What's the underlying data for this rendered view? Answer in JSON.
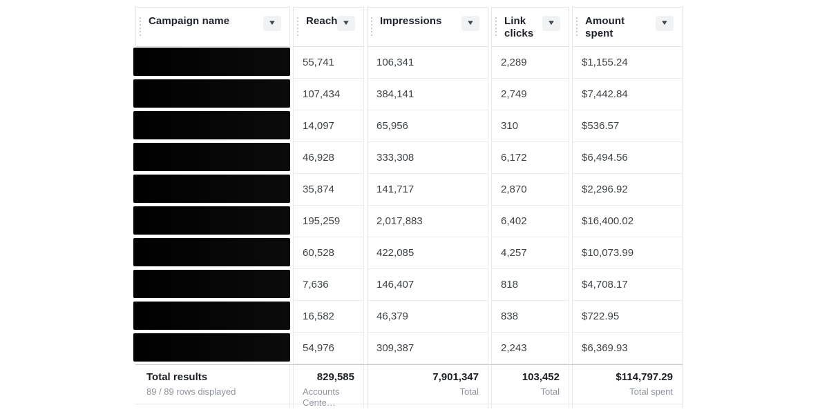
{
  "colors": {
    "border": "#e7e9ec",
    "totals_top_border": "#c6c9ce",
    "header_text": "#1d2129",
    "body_text": "#3e4347",
    "muted_text": "#8d939c",
    "sort_button_bg": "#f1f2f4",
    "redaction_bar": "#000000"
  },
  "icons": {
    "sort_caret": "▼"
  },
  "table": {
    "columns": [
      {
        "id": "campaign",
        "label": "Campaign name"
      },
      {
        "id": "reach",
        "label": "Reach"
      },
      {
        "id": "impressions",
        "label": "Impressions"
      },
      {
        "id": "link_clicks",
        "label": "Link clicks"
      },
      {
        "id": "amount_spent",
        "label": "Amount spent"
      }
    ],
    "rows": [
      {
        "reach": "55,741",
        "impressions": "106,341",
        "link_clicks": "2,289",
        "amount_spent": "$1,155.24"
      },
      {
        "reach": "107,434",
        "impressions": "384,141",
        "link_clicks": "2,749",
        "amount_spent": "$7,442.84"
      },
      {
        "reach": "14,097",
        "impressions": "65,956",
        "link_clicks": "310",
        "amount_spent": "$536.57"
      },
      {
        "reach": "46,928",
        "impressions": "333,308",
        "link_clicks": "6,172",
        "amount_spent": "$6,494.56"
      },
      {
        "reach": "35,874",
        "impressions": "141,717",
        "link_clicks": "2,870",
        "amount_spent": "$2,296.92"
      },
      {
        "reach": "195,259",
        "impressions": "2,017,883",
        "link_clicks": "6,402",
        "amount_spent": "$16,400.02"
      },
      {
        "reach": "60,528",
        "impressions": "422,085",
        "link_clicks": "4,257",
        "amount_spent": "$10,073.99"
      },
      {
        "reach": "7,636",
        "impressions": "146,407",
        "link_clicks": "818",
        "amount_spent": "$4,708.17"
      },
      {
        "reach": "16,582",
        "impressions": "46,379",
        "link_clicks": "838",
        "amount_spent": "$722.95"
      },
      {
        "reach": "54,976",
        "impressions": "309,387",
        "link_clicks": "2,243",
        "amount_spent": "$6,369.93"
      }
    ],
    "totals": {
      "title": "Total results",
      "subtitle": "89 / 89 rows displayed",
      "reach_value": "829,585",
      "reach_label": "Accounts Cente…",
      "impressions_value": "7,901,347",
      "impressions_label": "Total",
      "link_clicks_value": "103,452",
      "link_clicks_label": "Total",
      "amount_spent_value": "$114,797.29",
      "amount_spent_label": "Total spent"
    }
  }
}
